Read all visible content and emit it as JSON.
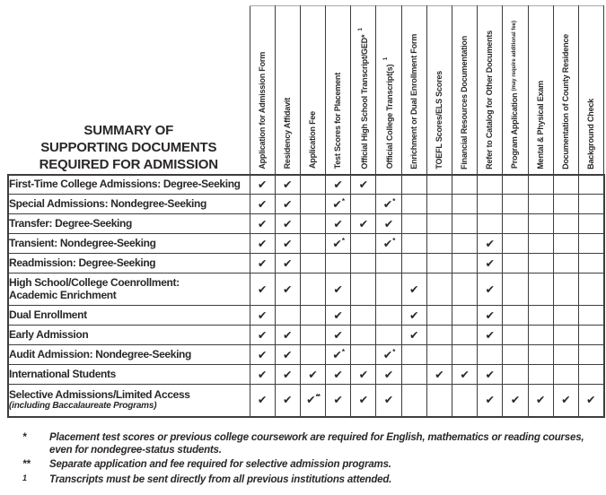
{
  "title": {
    "lines": [
      "SUMMARY OF",
      "SUPPORTING DOCUMENTS",
      "REQUIRED FOR ADMISSION"
    ]
  },
  "checkmark": "✔",
  "columns": [
    {
      "label": "Application for Admission Form"
    },
    {
      "label": "Residency Affidavit"
    },
    {
      "label": "Application Fee"
    },
    {
      "label": "Test Scores for Placement"
    },
    {
      "label": "Official High School Transcript/GED*",
      "sup": "1"
    },
    {
      "label": "Official College Transcript(s)",
      "sup": "1"
    },
    {
      "label": "Enrichment or Dual Enrollment Form"
    },
    {
      "label": "TOEFL Scores/ELS Scores"
    },
    {
      "label": "Financial Resources Documentation"
    },
    {
      "label": "Refer to Catalog for Other Documents"
    },
    {
      "label": "Program Application",
      "note": "(may require additional fee)"
    },
    {
      "label": "Mental & Physical Exam"
    },
    {
      "label": "Documentation of County Residence"
    },
    {
      "label": "Background Check"
    }
  ],
  "rows": [
    {
      "label": "First-Time College Admissions: Degree-Seeking",
      "cells": [
        "c",
        "c",
        "",
        "c",
        "c",
        "",
        "",
        "",
        "",
        "",
        "",
        "",
        "",
        ""
      ]
    },
    {
      "label": "Special Admissions: Nondegree-Seeking",
      "cells": [
        "c",
        "c",
        "",
        "c*",
        "",
        "c*",
        "",
        "",
        "",
        "",
        "",
        "",
        "",
        ""
      ]
    },
    {
      "label": "Transfer: Degree-Seeking",
      "cells": [
        "c",
        "c",
        "",
        "c",
        "c",
        "c",
        "",
        "",
        "",
        "",
        "",
        "",
        "",
        ""
      ]
    },
    {
      "label": "Transient: Nondegree-Seeking",
      "cells": [
        "c",
        "c",
        "",
        "c*",
        "",
        "c*",
        "",
        "",
        "",
        "c",
        "",
        "",
        "",
        ""
      ]
    },
    {
      "label": "Readmission: Degree-Seeking",
      "cells": [
        "c",
        "c",
        "",
        "",
        "",
        "",
        "",
        "",
        "",
        "c",
        "",
        "",
        "",
        ""
      ]
    },
    {
      "label": "High School/College Coenrollment:",
      "label2": "Academic Enrichment",
      "cells": [
        "c",
        "c",
        "",
        "c",
        "",
        "",
        "c",
        "",
        "",
        "c",
        "",
        "",
        "",
        ""
      ]
    },
    {
      "label": "Dual Enrollment",
      "cells": [
        "c",
        "",
        "",
        "c",
        "",
        "",
        "c",
        "",
        "",
        "c",
        "",
        "",
        "",
        ""
      ]
    },
    {
      "label": "Early Admission",
      "cells": [
        "c",
        "c",
        "",
        "c",
        "",
        "",
        "c",
        "",
        "",
        "c",
        "",
        "",
        "",
        ""
      ]
    },
    {
      "label": "Audit Admission: Nondegree-Seeking",
      "cells": [
        "c",
        "c",
        "",
        "c*",
        "",
        "c*",
        "",
        "",
        "",
        "",
        "",
        "",
        "",
        ""
      ]
    },
    {
      "label": "International Students",
      "cells": [
        "c",
        "c",
        "c",
        "c",
        "c",
        "c",
        "",
        "c",
        "c",
        "c",
        "",
        "",
        "",
        ""
      ]
    },
    {
      "label": "Selective Admissions/Limited Access",
      "note": "(including Baccalaureate Programs)",
      "cells": [
        "c",
        "c",
        "c**",
        "c",
        "c",
        "c",
        "",
        "",
        "",
        "c",
        "c",
        "c",
        "c",
        "c"
      ]
    }
  ],
  "footnotes": [
    {
      "marker": "*",
      "superscript": false,
      "text": "Placement test scores or previous college coursework are required for English, mathematics or reading courses, even for nondegree-status students."
    },
    {
      "marker": "**",
      "superscript": false,
      "text": "Separate application and fee required for selective admission programs."
    },
    {
      "marker": "1",
      "superscript": true,
      "text": "Transcripts must be sent directly from all previous institutions attended."
    }
  ]
}
